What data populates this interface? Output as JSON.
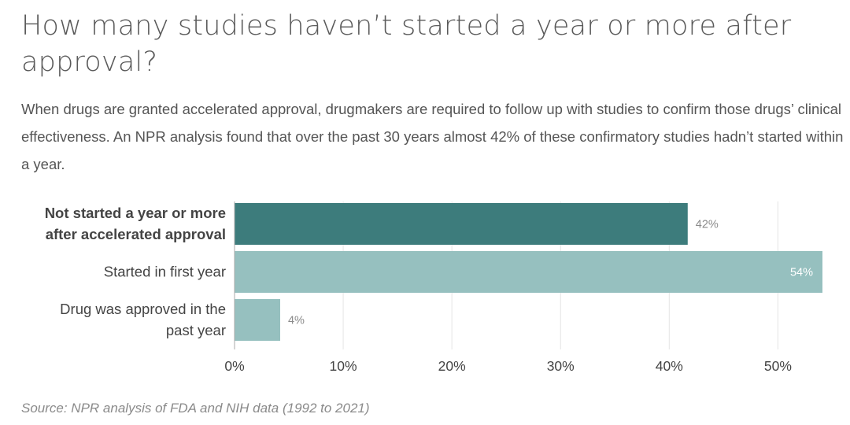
{
  "title": "How many studies haven’t started a year or more after approval?",
  "subtitle": "When drugs are granted accelerated approval, drugmakers are required to follow up with studies to confirm those drugs’ clinical effectiveness. An NPR analysis found that over the past 30 years almost 42% of these confirmatory studies hadn’t started within a year.",
  "source": "Source: NPR analysis of FDA and NIH data (1992 to 2021)",
  "chart_data": {
    "type": "bar",
    "orientation": "horizontal",
    "categories": [
      [
        "Not started a year or more",
        "after accelerated approval"
      ],
      [
        "Started in first year"
      ],
      [
        "Drug was approved in the",
        "past year"
      ]
    ],
    "values": [
      41.7,
      54.1,
      4.2
    ],
    "data_labels": [
      "42%",
      "54%",
      "4%"
    ],
    "label_inside": [
      false,
      true,
      false
    ],
    "bold_category": [
      true,
      false,
      false
    ],
    "bar_colors": [
      "#3d7c7c",
      "#96c0bf",
      "#96c0bf"
    ],
    "xlim": [
      0,
      54.1
    ],
    "xticks": [
      0,
      10,
      20,
      30,
      40,
      50
    ],
    "xtick_labels": [
      "0%",
      "10%",
      "20%",
      "30%",
      "40%",
      "50%"
    ],
    "grid": true,
    "xlabel": "",
    "ylabel": ""
  }
}
